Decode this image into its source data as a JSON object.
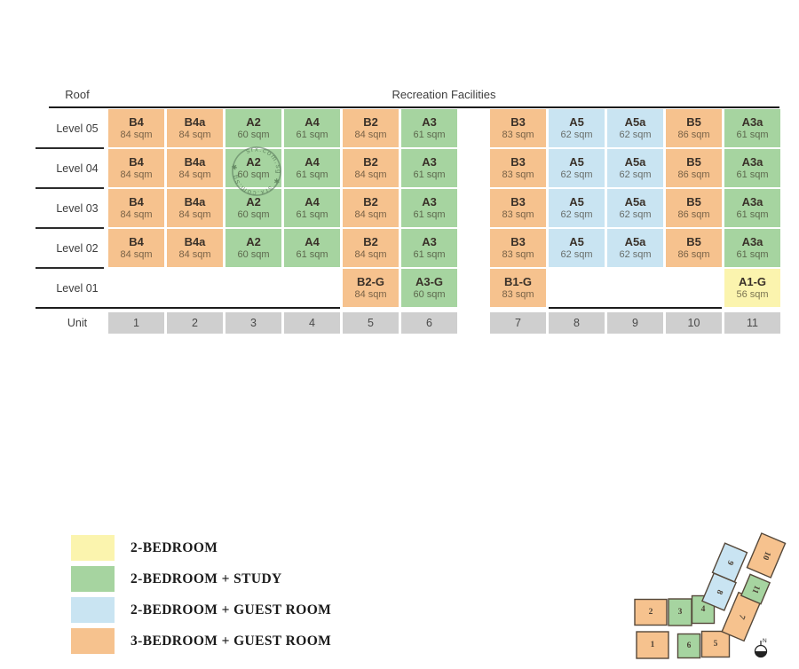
{
  "header": {
    "roof": "Roof",
    "recreation": "Recreation Facilities"
  },
  "colors": {
    "orange": "#F6C28E",
    "green": "#A6D4A0",
    "blue": "#C9E4F2",
    "yellow": "#FBF4AE",
    "grey": "#CFCFCF"
  },
  "levels": [
    {
      "label": "Level 05",
      "cells": [
        {
          "type": "B4",
          "area": "84 sqm",
          "color": "orange"
        },
        {
          "type": "B4a",
          "area": "84 sqm",
          "color": "orange"
        },
        {
          "type": "A2",
          "area": "60 sqm",
          "color": "green"
        },
        {
          "type": "A4",
          "area": "61 sqm",
          "color": "green"
        },
        {
          "type": "B2",
          "area": "84 sqm",
          "color": "orange"
        },
        {
          "type": "A3",
          "area": "61 sqm",
          "color": "green"
        },
        {
          "type": "B3",
          "area": "83 sqm",
          "color": "orange"
        },
        {
          "type": "A5",
          "area": "62 sqm",
          "color": "blue"
        },
        {
          "type": "A5a",
          "area": "62 sqm",
          "color": "blue"
        },
        {
          "type": "B5",
          "area": "86 sqm",
          "color": "orange"
        },
        {
          "type": "A3a",
          "area": "61 sqm",
          "color": "green"
        }
      ]
    },
    {
      "label": "Level 04",
      "cells": [
        {
          "type": "B4",
          "area": "84 sqm",
          "color": "orange"
        },
        {
          "type": "B4a",
          "area": "84 sqm",
          "color": "orange"
        },
        {
          "type": "A2",
          "area": "60 sqm",
          "color": "green"
        },
        {
          "type": "A4",
          "area": "61 sqm",
          "color": "green"
        },
        {
          "type": "B2",
          "area": "84 sqm",
          "color": "orange"
        },
        {
          "type": "A3",
          "area": "61 sqm",
          "color": "green"
        },
        {
          "type": "B3",
          "area": "83 sqm",
          "color": "orange"
        },
        {
          "type": "A5",
          "area": "62 sqm",
          "color": "blue"
        },
        {
          "type": "A5a",
          "area": "62 sqm",
          "color": "blue"
        },
        {
          "type": "B5",
          "area": "86 sqm",
          "color": "orange"
        },
        {
          "type": "A3a",
          "area": "61 sqm",
          "color": "green"
        }
      ]
    },
    {
      "label": "Level 03",
      "cells": [
        {
          "type": "B4",
          "area": "84 sqm",
          "color": "orange"
        },
        {
          "type": "B4a",
          "area": "84 sqm",
          "color": "orange"
        },
        {
          "type": "A2",
          "area": "60 sqm",
          "color": "green"
        },
        {
          "type": "A4",
          "area": "61 sqm",
          "color": "green"
        },
        {
          "type": "B2",
          "area": "84 sqm",
          "color": "orange"
        },
        {
          "type": "A3",
          "area": "61 sqm",
          "color": "green"
        },
        {
          "type": "B3",
          "area": "83 sqm",
          "color": "orange"
        },
        {
          "type": "A5",
          "area": "62 sqm",
          "color": "blue"
        },
        {
          "type": "A5a",
          "area": "62 sqm",
          "color": "blue"
        },
        {
          "type": "B5",
          "area": "86 sqm",
          "color": "orange"
        },
        {
          "type": "A3a",
          "area": "61 sqm",
          "color": "green"
        }
      ]
    },
    {
      "label": "Level 02",
      "cells": [
        {
          "type": "B4",
          "area": "84 sqm",
          "color": "orange"
        },
        {
          "type": "B4a",
          "area": "84 sqm",
          "color": "orange"
        },
        {
          "type": "A2",
          "area": "60 sqm",
          "color": "green"
        },
        {
          "type": "A4",
          "area": "61 sqm",
          "color": "green"
        },
        {
          "type": "B2",
          "area": "84 sqm",
          "color": "orange"
        },
        {
          "type": "A3",
          "area": "61 sqm",
          "color": "green"
        },
        {
          "type": "B3",
          "area": "83 sqm",
          "color": "orange"
        },
        {
          "type": "A5",
          "area": "62 sqm",
          "color": "blue"
        },
        {
          "type": "A5a",
          "area": "62 sqm",
          "color": "blue"
        },
        {
          "type": "B5",
          "area": "86 sqm",
          "color": "orange"
        },
        {
          "type": "A3a",
          "area": "61 sqm",
          "color": "green"
        }
      ]
    },
    {
      "label": "Level 01",
      "cells": [
        null,
        null,
        null,
        null,
        {
          "type": "B2-G",
          "area": "84 sqm",
          "color": "orange"
        },
        {
          "type": "A3-G",
          "area": "60 sqm",
          "color": "green"
        },
        {
          "type": "B1-G",
          "area": "83 sqm",
          "color": "orange"
        },
        null,
        null,
        null,
        {
          "type": "A1-G",
          "area": "56 sqm",
          "color": "yellow"
        }
      ]
    }
  ],
  "unit_row": {
    "label": "Unit",
    "numbers": [
      "1",
      "2",
      "3",
      "4",
      "5",
      "6",
      "7",
      "8",
      "9",
      "10",
      "11"
    ]
  },
  "legend": [
    {
      "color": "yellow",
      "label": "2-BEDROOM"
    },
    {
      "color": "green",
      "label": "2-BEDROOM + STUDY"
    },
    {
      "color": "blue",
      "label": "2-BEDROOM + GUEST ROOM"
    },
    {
      "color": "orange",
      "label": "3-BEDROOM + GUEST ROOM"
    }
  ],
  "watermark": {
    "ring_text": "srx.com.sg  ✱  srx.com.sg  ✱"
  },
  "site_plan": {
    "blocks": [
      {
        "num": "1",
        "color": "orange"
      },
      {
        "num": "2",
        "color": "orange"
      },
      {
        "num": "3",
        "color": "green"
      },
      {
        "num": "4",
        "color": "green"
      },
      {
        "num": "5",
        "color": "orange"
      },
      {
        "num": "6",
        "color": "green"
      },
      {
        "num": "7",
        "color": "orange"
      },
      {
        "num": "8",
        "color": "blue"
      },
      {
        "num": "9",
        "color": "blue"
      },
      {
        "num": "10",
        "color": "orange"
      },
      {
        "num": "11",
        "color": "green"
      }
    ],
    "compass": "N"
  }
}
